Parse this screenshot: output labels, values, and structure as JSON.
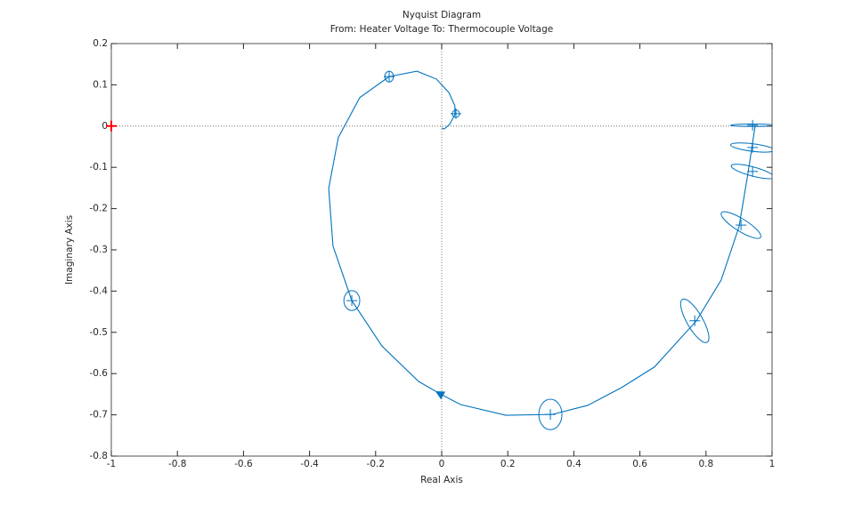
{
  "chart_data": {
    "type": "line",
    "title": "Nyquist Diagram",
    "subtitle": "From: Heater Voltage  To: Thermocouple Voltage",
    "xlabel": "Real Axis",
    "ylabel": "Imaginary Axis",
    "color": "#0072bd",
    "x": [
      0.949,
      0.927,
      0.9,
      0.846,
      0.771,
      0.644,
      0.544,
      0.442,
      0.334,
      0.194,
      0.057,
      -0.005,
      -0.07,
      -0.181,
      -0.272,
      -0.329,
      -0.342,
      -0.313,
      -0.248,
      -0.159,
      -0.075,
      -0.016,
      0.022,
      0.04,
      0.04,
      0.024,
      0.008,
      0.0
    ],
    "values": [
      0.002,
      -0.115,
      -0.244,
      -0.373,
      -0.472,
      -0.584,
      -0.634,
      -0.677,
      -0.699,
      -0.701,
      -0.675,
      -0.649,
      -0.619,
      -0.533,
      -0.423,
      -0.291,
      -0.151,
      -0.028,
      0.069,
      0.12,
      0.133,
      0.114,
      0.081,
      0.049,
      0.028,
      0.004,
      -0.007,
      -0.005
    ],
    "arrow_index": 11,
    "confidence_regions": [
      {
        "x": -0.159,
        "y": 0.12,
        "rx": 0.013,
        "ry": 0.013,
        "angle": 0
      },
      {
        "x": 0.043,
        "y": 0.03,
        "rx": 0.011,
        "ry": 0.009,
        "angle": 0
      },
      {
        "x": -0.272,
        "y": -0.423,
        "rx": 0.024,
        "ry": 0.024,
        "angle": 0
      },
      {
        "x": 0.329,
        "y": -0.699,
        "rx": 0.035,
        "ry": 0.037,
        "angle": 0
      },
      {
        "x": 0.766,
        "y": -0.472,
        "rx": 0.075,
        "ry": 0.019,
        "angle": 60
      },
      {
        "x": 0.906,
        "y": -0.24,
        "rx": 0.07,
        "ry": 0.015,
        "angle": 32
      },
      {
        "x": 0.941,
        "y": -0.11,
        "rx": 0.067,
        "ry": 0.011,
        "angle": 15
      },
      {
        "x": 0.941,
        "y": -0.052,
        "rx": 0.067,
        "ry": 0.009,
        "angle": 7
      },
      {
        "x": 0.941,
        "y": 0.002,
        "rx": 0.067,
        "ry": 0.003,
        "angle": 0
      }
    ],
    "critical_point": {
      "x": -1,
      "y": 0,
      "color": "#ff0000"
    },
    "xlim": [
      -1,
      1
    ],
    "ylim": [
      -0.8,
      0.2
    ],
    "xticks": [
      -1,
      -0.8,
      -0.6,
      -0.4,
      -0.2,
      0,
      0.2,
      0.4,
      0.6,
      0.8,
      1
    ],
    "yticks": [
      -0.8,
      -0.7,
      -0.6,
      -0.5,
      -0.4,
      -0.3,
      -0.2,
      -0.1,
      0,
      0.1,
      0.2
    ]
  }
}
